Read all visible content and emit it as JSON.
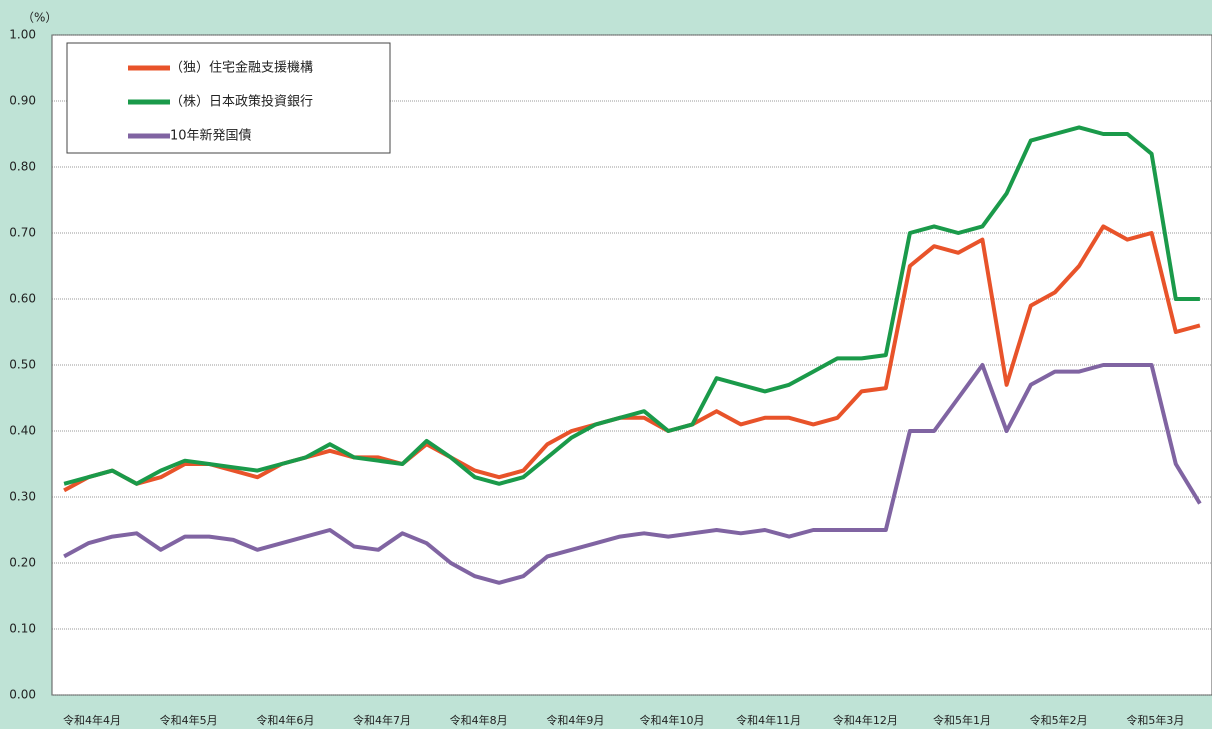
{
  "chart_data": {
    "type": "line",
    "y_label": "（%）",
    "categories": [
      "令和4年4月",
      null,
      null,
      null,
      "令和4年5月",
      null,
      null,
      null,
      "令和4年6月",
      null,
      null,
      null,
      "令和4年7月",
      null,
      null,
      null,
      "令和4年8月",
      null,
      null,
      null,
      "令和4年9月",
      null,
      null,
      null,
      "令和4年10月",
      null,
      null,
      null,
      "令和4年11月",
      null,
      null,
      null,
      "令和4年12月",
      null,
      null,
      null,
      "令和5年1月",
      null,
      null,
      null,
      "令和5年2月",
      null,
      null,
      null,
      "令和5年3月",
      null,
      null,
      null
    ],
    "series": [
      {
        "name": "（独）住宅金融支援機構",
        "color": "#e8532a",
        "values": [
          0.31,
          0.33,
          0.34,
          0.32,
          0.33,
          0.35,
          0.35,
          0.34,
          0.33,
          0.35,
          0.36,
          0.37,
          0.36,
          0.36,
          0.35,
          0.38,
          0.36,
          0.34,
          0.33,
          0.34,
          0.38,
          0.4,
          0.41,
          0.42,
          0.42,
          0.4,
          0.41,
          0.43,
          0.41,
          0.42,
          0.42,
          0.41,
          0.42,
          0.46,
          0.465,
          0.65,
          0.68,
          0.67,
          0.69,
          0.47,
          0.59,
          0.61,
          0.65,
          0.71,
          0.69,
          0.7,
          0.55,
          0.56
        ]
      },
      {
        "name": "（株）日本政策投資銀行",
        "color": "#1a9a4a",
        "values": [
          0.32,
          0.33,
          0.34,
          0.32,
          0.34,
          0.355,
          0.35,
          0.345,
          0.34,
          0.35,
          0.36,
          0.38,
          0.36,
          0.355,
          0.35,
          0.385,
          0.36,
          0.33,
          0.32,
          0.33,
          0.36,
          0.39,
          0.41,
          0.42,
          0.43,
          0.4,
          0.41,
          0.48,
          0.47,
          0.46,
          0.47,
          0.49,
          0.51,
          0.51,
          0.515,
          0.7,
          0.71,
          0.7,
          0.71,
          0.76,
          0.84,
          0.85,
          0.86,
          0.85,
          0.85,
          0.82,
          0.6,
          0.6
        ]
      },
      {
        "name": "10年新発国債",
        "color": "#8064a2",
        "values": [
          0.21,
          0.23,
          0.24,
          0.245,
          0.22,
          0.24,
          0.24,
          0.235,
          0.22,
          0.23,
          0.24,
          0.25,
          0.225,
          0.22,
          0.245,
          0.23,
          0.2,
          0.18,
          0.17,
          0.18,
          0.21,
          0.22,
          0.23,
          0.24,
          0.245,
          0.24,
          0.245,
          0.25,
          0.245,
          0.25,
          0.24,
          0.25,
          0.25,
          0.25,
          0.25,
          0.4,
          0.4,
          0.45,
          0.5,
          0.4,
          0.47,
          0.49,
          0.49,
          0.5,
          0.5,
          0.5,
          0.35,
          0.29
        ]
      }
    ],
    "ylim": [
      0,
      1
    ],
    "yticks": [
      {
        "value": 0,
        "label": "0.00"
      },
      {
        "value": 0.1,
        "label": "0.10"
      },
      {
        "value": 0.2,
        "label": "0.20"
      },
      {
        "value": 0.3,
        "label": "0.30"
      },
      {
        "value": 0.4,
        "label": "0.40"
      },
      {
        "value": 0.5,
        "label": "0.50"
      },
      {
        "value": 0.6,
        "label": "0.60"
      },
      {
        "value": 0.7,
        "label": "0.70"
      },
      {
        "value": 0.8,
        "label": "0.80"
      },
      {
        "value": 0.9,
        "label": "0.90"
      },
      {
        "value": 1,
        "label": "1.00"
      }
    ],
    "grid": true,
    "legend": "upper-left"
  }
}
